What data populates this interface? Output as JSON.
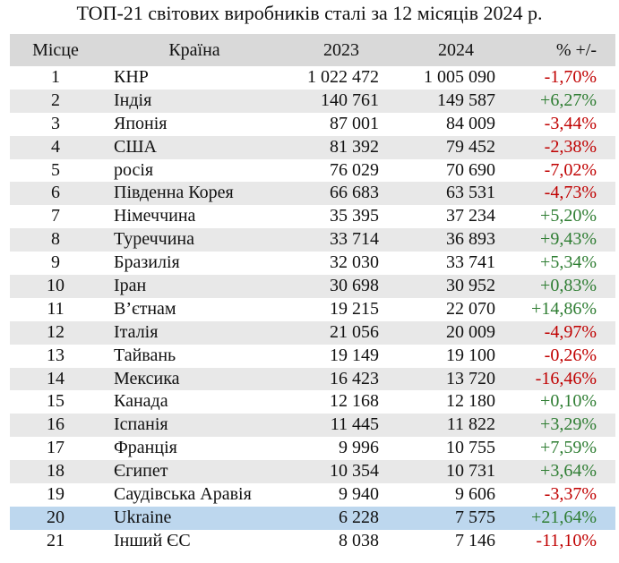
{
  "title": "ТОП-21 світових виробників сталі за 12 місяців 2024 р.",
  "headers": {
    "rank": "Місце",
    "country": "Країна",
    "y2023": "2023",
    "y2024": "2024",
    "pct": "% +/-"
  },
  "colors": {
    "negative": "#c00000",
    "positive": "#2e7d32",
    "highlight": "#bdd7ee"
  },
  "rows": [
    {
      "rank": "1",
      "country": "КНР",
      "y2023": "1 022 472",
      "y2024": "1 005 090",
      "pct": "-1,70%"
    },
    {
      "rank": "2",
      "country": "Індія",
      "y2023": "140 761",
      "y2024": "149 587",
      "pct": "+6,27%"
    },
    {
      "rank": "3",
      "country": "Японія",
      "y2023": "87 001",
      "y2024": "84 009",
      "pct": "-3,44%"
    },
    {
      "rank": "4",
      "country": "США",
      "y2023": "81 392",
      "y2024": "79 452",
      "pct": "-2,38%"
    },
    {
      "rank": "5",
      "country": "росія",
      "y2023": "76 029",
      "y2024": "70 690",
      "pct": "-7,02%"
    },
    {
      "rank": "6",
      "country": "Південна Корея",
      "y2023": "66 683",
      "y2024": "63 531",
      "pct": "-4,73%"
    },
    {
      "rank": "7",
      "country": "Німеччина",
      "y2023": "35 395",
      "y2024": "37 234",
      "pct": "+5,20%"
    },
    {
      "rank": "8",
      "country": "Туреччина",
      "y2023": "33 714",
      "y2024": "36 893",
      "pct": "+9,43%"
    },
    {
      "rank": "9",
      "country": "Бразилія",
      "y2023": "32 030",
      "y2024": "33 741",
      "pct": "+5,34%"
    },
    {
      "rank": "10",
      "country": "Іран",
      "y2023": "30 698",
      "y2024": "30 952",
      "pct": "+0,83%"
    },
    {
      "rank": "11",
      "country": "В’єтнам",
      "y2023": "19 215",
      "y2024": "22 070",
      "pct": "+14,86%"
    },
    {
      "rank": "12",
      "country": "Італія",
      "y2023": "21 056",
      "y2024": "20 009",
      "pct": "-4,97%"
    },
    {
      "rank": "13",
      "country": "Тайвань",
      "y2023": "19 149",
      "y2024": "19 100",
      "pct": "-0,26%"
    },
    {
      "rank": "14",
      "country": "Мексика",
      "y2023": "16 423",
      "y2024": "13 720",
      "pct": "-16,46%"
    },
    {
      "rank": "15",
      "country": "Канада",
      "y2023": "12 168",
      "y2024": "12 180",
      "pct": "+0,10%"
    },
    {
      "rank": "16",
      "country": "Іспанія",
      "y2023": "11 445",
      "y2024": "11 822",
      "pct": "+3,29%"
    },
    {
      "rank": "17",
      "country": "Франція",
      "y2023": "9 996",
      "y2024": "10 755",
      "pct": "+7,59%"
    },
    {
      "rank": "18",
      "country": "Єгипет",
      "y2023": "10 354",
      "y2024": "10 731",
      "pct": "+3,64%"
    },
    {
      "rank": "19",
      "country": "Саудівська Аравія",
      "y2023": "9 940",
      "y2024": "9 606",
      "pct": "-3,37%"
    },
    {
      "rank": "20",
      "country": "Ukraine",
      "y2023": "6 228",
      "y2024": "7 575",
      "pct": "+21,64%",
      "highlight": true
    },
    {
      "rank": "21",
      "country": "Інший ЄС",
      "y2023": "8 038",
      "y2024": "7 146",
      "pct": "-11,10%"
    }
  ]
}
